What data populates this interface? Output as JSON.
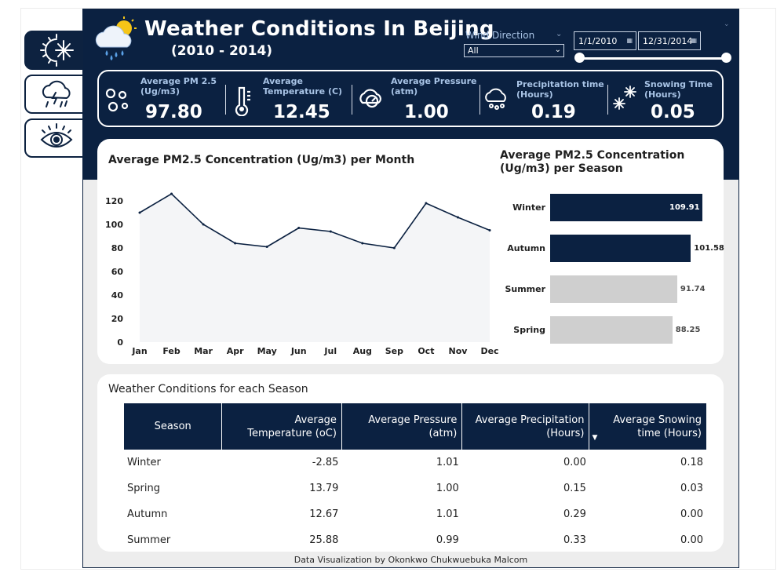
{
  "header": {
    "title": "Weather Conditions In Beijing",
    "subtitle": "(2010 - 2014)"
  },
  "filters": {
    "wind_label": "Wind Direction",
    "wind_value": "All",
    "date_start": "1/1/2010",
    "date_end": "12/31/2014"
  },
  "kpis": [
    {
      "label1": "Average PM 2.5",
      "label2": "(Ug/m3)",
      "value": "97.80",
      "icon": "particles-icon"
    },
    {
      "label1": "Average",
      "label2": "Temperature (C)",
      "value": "12.45",
      "icon": "thermometer-icon"
    },
    {
      "label1": "Average Pressure",
      "label2": "(atm)",
      "value": "1.00",
      "icon": "pressure-icon"
    },
    {
      "label1": "Precipitation time",
      "label2": "(Hours)",
      "value": "0.19",
      "icon": "rain-cloud-icon"
    },
    {
      "label1": "Snowing Time",
      "label2": "(Hours)",
      "value": "0.05",
      "icon": "snowflake-icon"
    }
  ],
  "sidebar": [
    {
      "name": "sun-snow-icon",
      "active": true
    },
    {
      "name": "storm-cloud-icon",
      "active": false
    },
    {
      "name": "eye-icon",
      "active": false
    }
  ],
  "chart_data": [
    {
      "type": "area",
      "title": "Average PM2.5 Concentration (Ug/m3) per Month",
      "categories": [
        "Jan",
        "Feb",
        "Mar",
        "Apr",
        "May",
        "Jun",
        "Jul",
        "Aug",
        "Sep",
        "Oct",
        "Nov",
        "Dec"
      ],
      "values": [
        110,
        126,
        100,
        84,
        81,
        97,
        94,
        84,
        80,
        118,
        106,
        95
      ],
      "ylim": [
        0,
        130
      ],
      "yticks": [
        0,
        20,
        40,
        60,
        80,
        100,
        120
      ],
      "line_color": "#0b2141",
      "fill_color": "#f4f5f7"
    },
    {
      "type": "bar",
      "orientation": "horizontal",
      "title": "Average PM2.5 Concentration (Ug/m3) per Season",
      "categories": [
        "Winter",
        "Autumn",
        "Summer",
        "Spring"
      ],
      "values": [
        109.91,
        101.58,
        91.74,
        88.25
      ],
      "labels": [
        "109.91",
        "101.58",
        "91.74",
        "88.25"
      ],
      "colors": [
        "#0b2141",
        "#0b2141",
        "#cfcfcf",
        "#cfcfcf"
      ]
    }
  ],
  "table": {
    "title": "Weather Conditions for each Season",
    "headers": [
      "Season",
      "Average Temperature (oC)",
      "Average Pressure (atm)",
      "Average Precipitation (Hours)",
      "Average Snowing time (Hours)"
    ],
    "rows": [
      [
        "Winter",
        "-2.85",
        "1.01",
        "0.00",
        "0.18"
      ],
      [
        "Spring",
        "13.79",
        "1.00",
        "0.15",
        "0.03"
      ],
      [
        "Autumn",
        "12.67",
        "1.01",
        "0.29",
        "0.00"
      ],
      [
        "Summer",
        "25.88",
        "0.99",
        "0.33",
        "0.00"
      ]
    ]
  },
  "footer": "Data Visualization by Okonkwo Chukwuebuka Malcom",
  "colors": {
    "navy": "#0b2141",
    "kpi_label": "#a9c4e6",
    "grey_bar": "#cfcfcf"
  }
}
